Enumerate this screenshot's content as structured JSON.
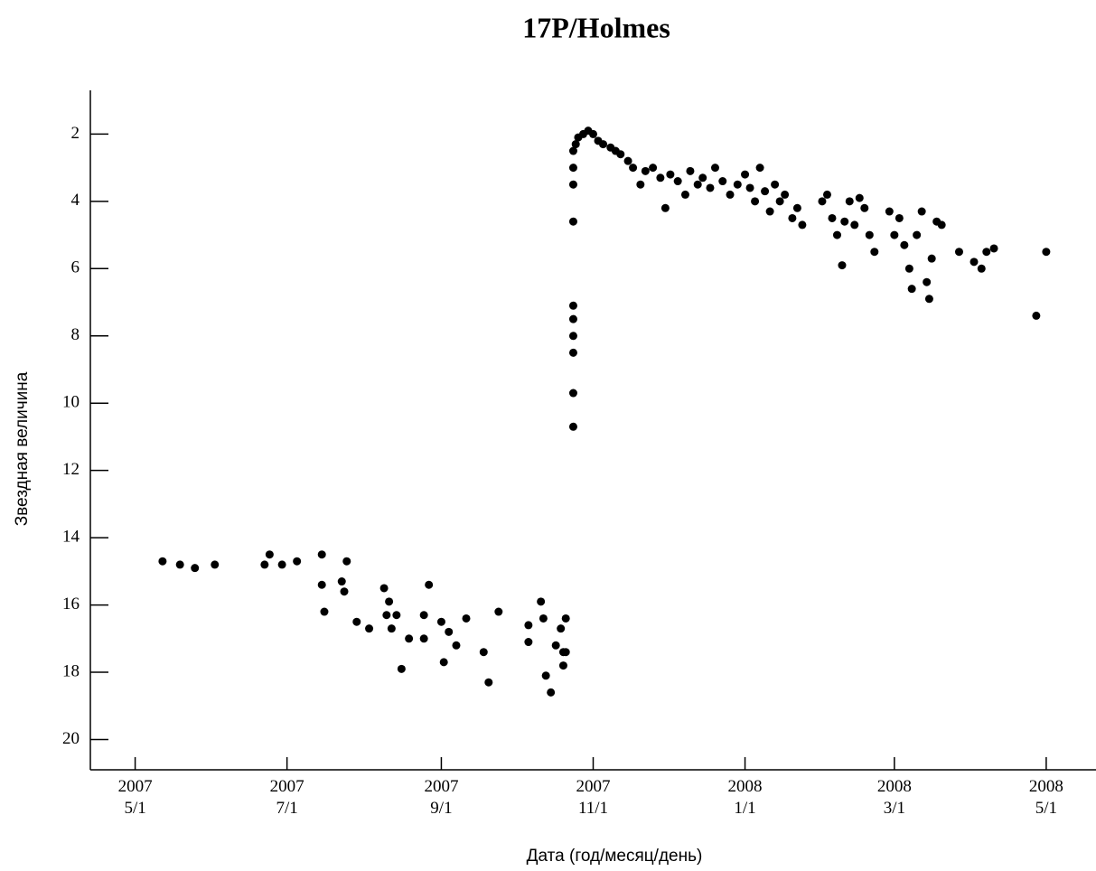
{
  "chart_data": {
    "type": "scatter",
    "title": "17P/Holmes",
    "xlabel": "Дата (год/месяц/день)",
    "ylabel": "Звездная величина",
    "color": "#000000",
    "invert_y": true,
    "xlim": [
      "2007-04-13",
      "2008-05-21"
    ],
    "xticks": [
      {
        "value": "2007-05-01",
        "label": "2007\n5/1"
      },
      {
        "value": "2007-07-01",
        "label": "2007\n7/1"
      },
      {
        "value": "2007-09-01",
        "label": "2007\n9/1"
      },
      {
        "value": "2007-11-01",
        "label": "2007\n11/1"
      },
      {
        "value": "2008-01-01",
        "label": "2008\n1/1"
      },
      {
        "value": "2008-03-01",
        "label": "2008\n3/1"
      },
      {
        "value": "2008-05-01",
        "label": "2008\n5/1"
      }
    ],
    "ylim": [
      0.7,
      20.9
    ],
    "yticks": [
      2,
      4,
      6,
      8,
      10,
      12,
      14,
      16,
      18,
      20
    ],
    "x": [
      "2007-05-12",
      "2007-05-19",
      "2007-05-25",
      "2007-06-02",
      "2007-06-22",
      "2007-06-24",
      "2007-06-29",
      "2007-07-05",
      "2007-07-15",
      "2007-07-15",
      "2007-07-16",
      "2007-07-23",
      "2007-07-25",
      "2007-07-24",
      "2007-07-29",
      "2007-08-03",
      "2007-08-09",
      "2007-08-11",
      "2007-08-10",
      "2007-08-12",
      "2007-08-14",
      "2007-08-16",
      "2007-08-19",
      "2007-08-25",
      "2007-08-25",
      "2007-08-27",
      "2007-09-01",
      "2007-09-02",
      "2007-09-04",
      "2007-09-07",
      "2007-09-11",
      "2007-09-18",
      "2007-09-20",
      "2007-09-24",
      "2007-10-06",
      "2007-10-06",
      "2007-10-11",
      "2007-10-12",
      "2007-10-13",
      "2007-10-15",
      "2007-10-17",
      "2007-10-19",
      "2007-10-20",
      "2007-10-20",
      "2007-10-21",
      "2007-10-21",
      "2007-10-24",
      "2007-10-24",
      "2007-10-24",
      "2007-10-24",
      "2007-10-24",
      "2007-10-24",
      "2007-10-24",
      "2007-10-24",
      "2007-10-24",
      "2007-10-24",
      "2007-10-25",
      "2007-10-26",
      "2007-10-28",
      "2007-10-30",
      "2007-11-01",
      "2007-11-03",
      "2007-11-05",
      "2007-11-08",
      "2007-11-10",
      "2007-11-12",
      "2007-11-15",
      "2007-11-17",
      "2007-11-20",
      "2007-11-22",
      "2007-11-25",
      "2007-11-28",
      "2007-11-30",
      "2007-12-02",
      "2007-12-05",
      "2007-12-08",
      "2007-12-10",
      "2007-12-13",
      "2007-12-15",
      "2007-12-18",
      "2007-12-20",
      "2007-12-23",
      "2007-12-26",
      "2007-12-29",
      "2008-01-01",
      "2008-01-03",
      "2008-01-05",
      "2008-01-07",
      "2008-01-09",
      "2008-01-11",
      "2008-01-13",
      "2008-01-15",
      "2008-01-17",
      "2008-01-20",
      "2008-01-22",
      "2008-01-24",
      "2008-02-01",
      "2008-02-03",
      "2008-02-05",
      "2008-02-07",
      "2008-02-09",
      "2008-02-10",
      "2008-02-12",
      "2008-02-14",
      "2008-02-16",
      "2008-02-18",
      "2008-02-20",
      "2008-02-22",
      "2008-02-28",
      "2008-03-01",
      "2008-03-03",
      "2008-03-05",
      "2008-03-07",
      "2008-03-08",
      "2008-03-10",
      "2008-03-12",
      "2008-03-14",
      "2008-03-15",
      "2008-03-16",
      "2008-03-18",
      "2008-03-20",
      "2008-03-27",
      "2008-04-02",
      "2008-04-05",
      "2008-04-07",
      "2008-04-10",
      "2008-04-27",
      "2008-05-01"
    ],
    "values": [
      14.7,
      14.8,
      14.9,
      14.8,
      14.8,
      14.5,
      14.8,
      14.7,
      14.5,
      15.4,
      16.2,
      15.3,
      14.7,
      15.6,
      16.5,
      16.7,
      15.5,
      15.9,
      16.3,
      16.7,
      16.3,
      17.9,
      17.0,
      17.0,
      16.3,
      15.4,
      16.5,
      17.7,
      16.8,
      17.2,
      16.4,
      17.4,
      18.3,
      16.2,
      17.1,
      16.6,
      15.9,
      16.4,
      18.1,
      18.6,
      17.2,
      16.7,
      17.4,
      17.8,
      16.4,
      17.4,
      10.7,
      9.7,
      8.5,
      8.0,
      7.5,
      7.1,
      4.6,
      3.5,
      3.0,
      2.5,
      2.3,
      2.1,
      2.0,
      1.9,
      2.0,
      2.2,
      2.3,
      2.4,
      2.5,
      2.6,
      2.8,
      3.0,
      3.5,
      3.1,
      3.0,
      3.3,
      4.2,
      3.2,
      3.4,
      3.8,
      3.1,
      3.5,
      3.3,
      3.6,
      3.0,
      3.4,
      3.8,
      3.5,
      3.2,
      3.6,
      4.0,
      3.0,
      3.7,
      4.3,
      3.5,
      4.0,
      3.8,
      4.5,
      4.2,
      4.7,
      4.0,
      3.8,
      4.5,
      5.0,
      5.9,
      4.6,
      4.0,
      4.7,
      3.9,
      4.2,
      5.0,
      5.5,
      4.3,
      5.0,
      4.5,
      5.3,
      6.0,
      6.6,
      5.0,
      4.3,
      6.4,
      6.9,
      5.7,
      4.6,
      4.7,
      5.5,
      5.8,
      6.0,
      5.5,
      5.4,
      7.4,
      5.5
    ]
  }
}
